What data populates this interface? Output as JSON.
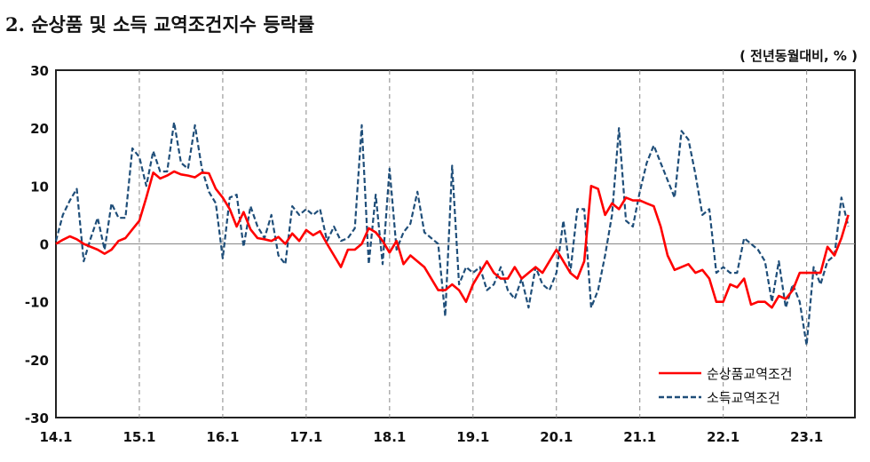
{
  "chart_data": {
    "type": "line",
    "title": "2. 순상품 및 소득 교역조건지수 등락률",
    "unit": "( 전년동월대비, % )",
    "ylim": [
      -30,
      30
    ],
    "yticks": [
      30,
      20,
      10,
      0,
      -10,
      -20,
      -30
    ],
    "xticks": [
      "14.1",
      "15.1",
      "16.1",
      "17.1",
      "18.1",
      "19.1",
      "20.1",
      "21.1",
      "22.1",
      "23.1"
    ],
    "x_start": "14.1",
    "x_end": "23.7",
    "frequency": "monthly",
    "grid": "vertical dashed at each January",
    "legend_position": "bottom-right",
    "series": [
      {
        "name": "순상품교역조건",
        "color": "#ff0000",
        "style": "solid",
        "values": [
          0,
          0.7,
          1.3,
          0.8,
          0,
          -0.5,
          -1,
          -1.7,
          -1,
          0.5,
          1,
          2.5,
          4,
          8,
          12.3,
          11.3,
          11.8,
          12.5,
          12,
          11.8,
          11.5,
          12.3,
          12.2,
          9.5,
          8,
          6,
          3,
          5.5,
          2.5,
          1,
          0.8,
          0.5,
          1.2,
          0,
          1.8,
          0.5,
          2.4,
          1.5,
          2.2,
          0,
          -2,
          -4,
          -1,
          -1,
          0,
          2.7,
          2,
          0.5,
          -1.5,
          0.5,
          -3.5,
          -2,
          -3,
          -4,
          -6,
          -8,
          -8,
          -7,
          -8,
          -10,
          -7,
          -5,
          -3,
          -5,
          -6,
          -6,
          -4,
          -6,
          -5,
          -4,
          -5,
          -3,
          -1,
          -3,
          -5,
          -6,
          -3,
          10,
          9.5,
          5,
          7,
          6,
          8,
          7.5,
          7.5,
          7,
          6.5,
          3,
          -2,
          -4.5,
          -4,
          -3.5,
          -5,
          -4.5,
          -6,
          -10,
          -10,
          -7,
          -7.5,
          -6,
          -10.5,
          -10,
          -10,
          -11,
          -9,
          -9.5,
          -8,
          -5,
          -5,
          -5,
          -5,
          -0.5,
          -2,
          1,
          5
        ]
      },
      {
        "name": "소득교역조건",
        "color": "#1f4e79",
        "style": "dashed",
        "values": [
          0.5,
          5,
          7.5,
          9.5,
          -3,
          1,
          4.5,
          -1,
          7,
          4.5,
          4.5,
          16.5,
          15,
          10,
          16,
          12.5,
          12.5,
          21,
          14,
          13,
          20.5,
          13,
          9,
          7,
          -2.5,
          8,
          8.5,
          -0.5,
          6.5,
          3,
          1,
          5,
          -2,
          -3.5,
          6.5,
          5,
          6,
          5,
          6,
          0.5,
          3,
          0.5,
          1,
          2.7,
          20.5,
          -3.5,
          8.5,
          -3.5,
          13,
          -1,
          2,
          3.5,
          9,
          2,
          1,
          0,
          -12.5,
          13.5,
          -7,
          -4,
          -5,
          -4,
          -8,
          -7,
          -4,
          -8,
          -9.5,
          -6,
          -11,
          -4,
          -7,
          -8,
          -5,
          4,
          -5,
          6,
          6,
          -11,
          -8,
          -2,
          5,
          20,
          4,
          3,
          9,
          14,
          17,
          14,
          11,
          8,
          19.5,
          18,
          12,
          5,
          6,
          -5,
          -4,
          -5,
          -5,
          1,
          0,
          -1,
          -3,
          -10,
          -3,
          -11,
          -7,
          -10,
          -17.5,
          -4,
          -7,
          -3,
          -2,
          8,
          3
        ]
      }
    ]
  }
}
